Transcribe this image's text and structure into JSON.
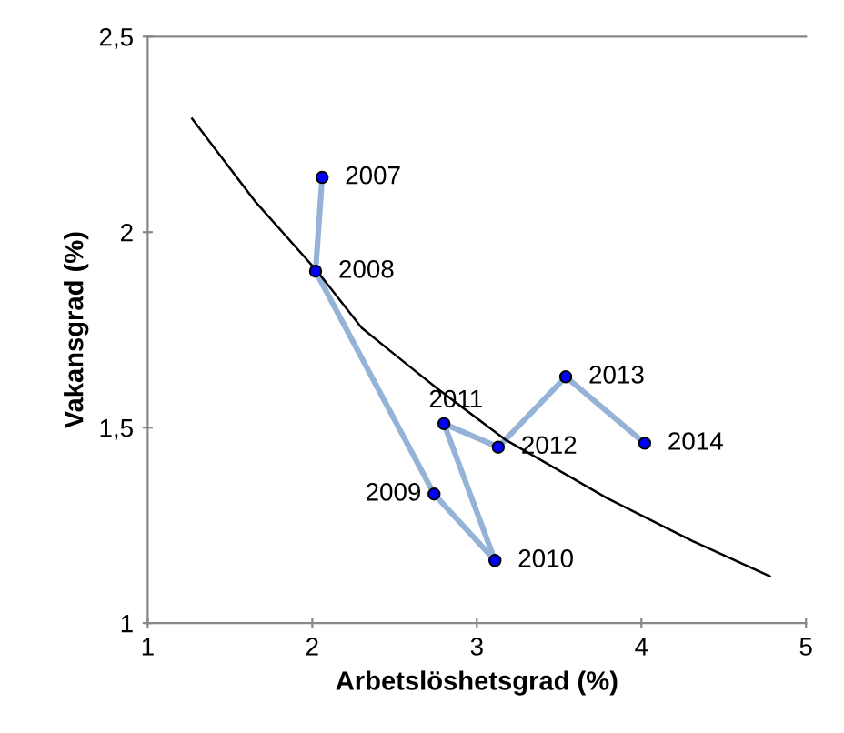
{
  "chart_data": {
    "type": "line",
    "xlabel": "Arbetslöshetsgrad (%)",
    "ylabel": "Vakansgrad (%)",
    "xlim": [
      1,
      5
    ],
    "xticks": [
      1,
      2,
      3,
      4,
      5
    ],
    "ylim": [
      1,
      2.5
    ],
    "yticks": [
      1,
      {
        "value": 1.5,
        "label": "1,5"
      },
      2,
      {
        "value": 2.5,
        "label": "2,5"
      }
    ],
    "grid": false,
    "legend": false,
    "series": [
      {
        "color": "#95b3d7",
        "marker": "circle",
        "x": [
          2.06,
          2.02,
          2.74,
          3.11,
          2.8,
          3.13,
          3.54,
          4.02
        ],
        "values": [
          2.14,
          1.9,
          1.33,
          1.16,
          1.51,
          1.45,
          1.63,
          1.46
        ]
      },
      {
        "color": "#000000",
        "marker": "none",
        "x": [
          1.27,
          1.65,
          2.03,
          2.3,
          2.58,
          2.76,
          3.17,
          3.79,
          4.31,
          4.78
        ],
        "values": [
          2.29,
          2.08,
          1.9,
          1.755,
          1.66,
          1.6,
          1.47,
          1.32,
          1.21,
          1.12
        ]
      }
    ],
    "annotations": [
      {
        "text": "2007",
        "x": 2.06,
        "y": 2.14
      },
      {
        "text": "2008",
        "x": 2.02,
        "y": 1.9
      },
      {
        "text": "2009",
        "x": 2.74,
        "y": 1.33
      },
      {
        "text": "2010",
        "x": 3.11,
        "y": 1.16
      },
      {
        "text": "2011",
        "x": 2.8,
        "y": 1.51
      },
      {
        "text": "2012",
        "x": 3.13,
        "y": 1.45
      },
      {
        "text": "2013",
        "x": 3.54,
        "y": 1.63
      },
      {
        "text": "2014",
        "x": 4.02,
        "y": 1.46
      }
    ]
  }
}
